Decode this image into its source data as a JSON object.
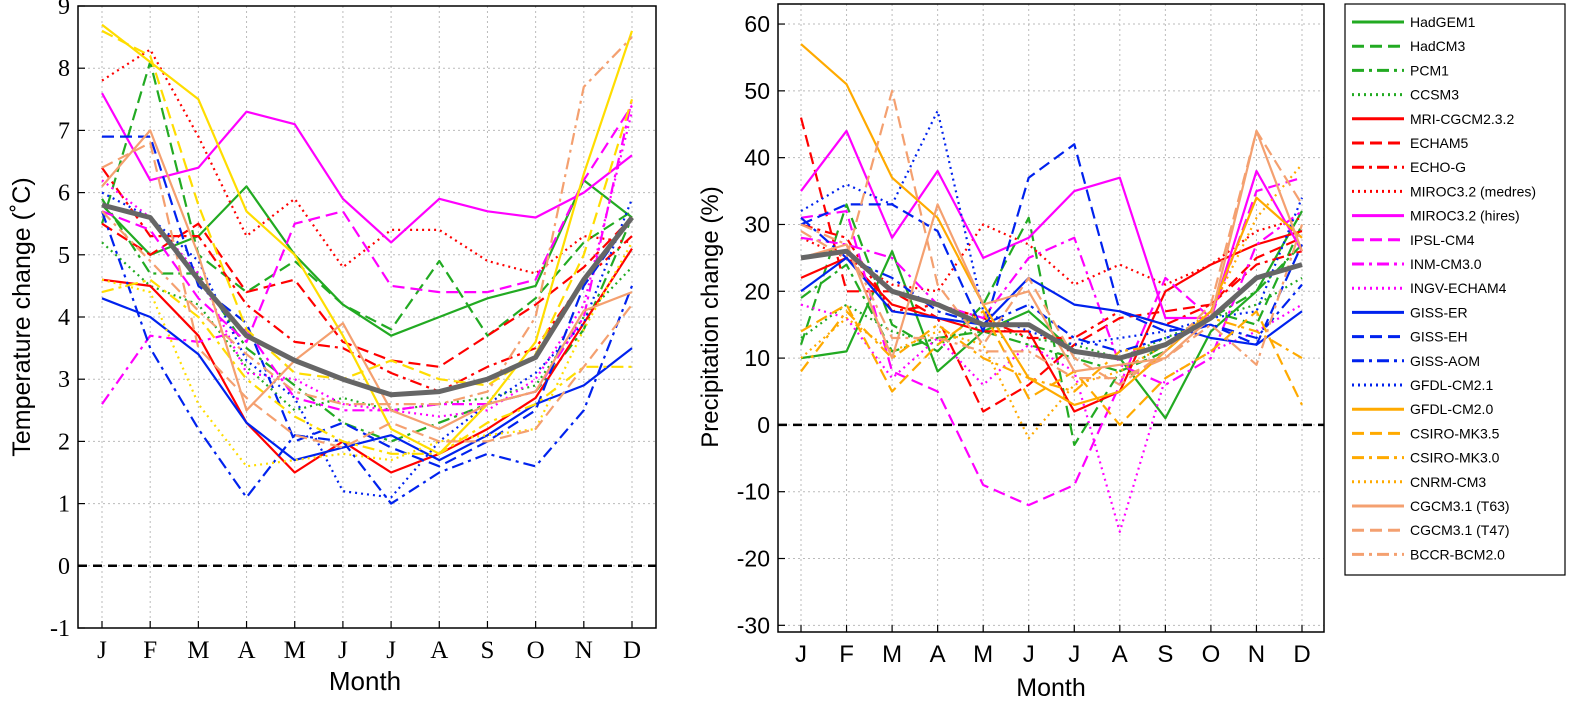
{
  "months": [
    "J",
    "F",
    "M",
    "A",
    "M",
    "J",
    "J",
    "A",
    "S",
    "O",
    "N",
    "D"
  ],
  "legend_entries": [
    {
      "name": "HadGEM1",
      "color": "#22aa22",
      "dash": "solid"
    },
    {
      "name": "HadCM3",
      "color": "#22aa22",
      "dash": "dash"
    },
    {
      "name": "PCM1",
      "color": "#22aa22",
      "dashdot": true,
      "dash": "dashdot"
    },
    {
      "name": "CCSM3",
      "color": "#22aa22",
      "dash": "dot"
    },
    {
      "name": "MRI-CGCM2.3.2",
      "color": "#ff0000",
      "dash": "solid"
    },
    {
      "name": "ECHAM5",
      "color": "#ff0000",
      "dash": "dash"
    },
    {
      "name": "ECHO-G",
      "color": "#ff0000",
      "dash": "dashdot"
    },
    {
      "name": "MIROC3.2 (medres)",
      "color": "#ff0000",
      "dash": "dot"
    },
    {
      "name": "MIROC3.2 (hires)",
      "color": "#ff00ff",
      "dash": "solid"
    },
    {
      "name": "IPSL-CM4",
      "color": "#ff00ff",
      "dash": "dash"
    },
    {
      "name": "INM-CM3.0",
      "color": "#ff00ff",
      "dash": "dashdot"
    },
    {
      "name": "INGV-ECHAM4",
      "color": "#ff00ff",
      "dash": "dot"
    },
    {
      "name": "GISS-ER",
      "color": "#0022ee",
      "dash": "solid"
    },
    {
      "name": "GISS-EH",
      "color": "#0022ee",
      "dash": "dash"
    },
    {
      "name": "GISS-AOM",
      "color": "#0022ee",
      "dash": "dashdot"
    },
    {
      "name": "GFDL-CM2.1",
      "color": "#0022ee",
      "dash": "dot"
    },
    {
      "name": "GFDL-CM2.0",
      "color": "#ffaa00",
      "dash": "solid"
    },
    {
      "name": "CSIRO-MK3.5",
      "color": "#ffaa00",
      "dash": "dash"
    },
    {
      "name": "CSIRO-MK3.0",
      "color": "#ffaa00",
      "dash": "dashdot"
    },
    {
      "name": "CNRM-CM3",
      "color": "#ffaa00",
      "dash": "dot"
    },
    {
      "name": "CGCM3.1 (T63)",
      "color": "#f4a070",
      "dash": "solid"
    },
    {
      "name": "CGCM3.1 (T47)",
      "color": "#f4a070",
      "dash": "dash"
    },
    {
      "name": "BCCR-BCM2.0",
      "color": "#f4a070",
      "dash": "dashdot"
    }
  ],
  "chart_data": [
    {
      "type": "line",
      "xlabel": "Month",
      "ylabel": "Temperature change (˚C)",
      "ylim": [
        -1,
        9
      ],
      "yticks": [
        "-1",
        "0",
        "1",
        "2",
        "3",
        "4",
        "5",
        "6",
        "7",
        "8",
        "9"
      ],
      "grid": true,
      "reference_line": 0,
      "series": [
        {
          "name": "HadGEM1",
          "color": "#22aa22",
          "dash": "solid",
          "values": [
            5.8,
            5.0,
            5.3,
            6.1,
            5.0,
            4.2,
            3.7,
            4.0,
            4.3,
            4.5,
            6.2,
            5.6
          ]
        },
        {
          "name": "HadCM3",
          "color": "#22aa22",
          "dash": "dash",
          "values": [
            5.5,
            8.1,
            5.0,
            4.4,
            4.9,
            4.2,
            3.8,
            4.9,
            3.7,
            4.3,
            5.2,
            5.7
          ]
        },
        {
          "name": "PCM1",
          "color": "#22aa22",
          "dash": "dashdot",
          "values": [
            5.9,
            4.7,
            4.7,
            3.5,
            2.9,
            2.3,
            2.0,
            2.3,
            2.6,
            2.8,
            3.8,
            5.6
          ]
        },
        {
          "name": "CCSM3",
          "color": "#22aa22",
          "dash": "dot",
          "values": [
            5.2,
            4.5,
            4.2,
            3.2,
            2.5,
            2.7,
            2.5,
            2.6,
            2.7,
            2.9,
            4.0,
            4.8
          ]
        },
        {
          "name": "MRI-CGCM2.3.2",
          "color": "#ff0000",
          "dash": "solid",
          "values": [
            4.6,
            4.5,
            3.7,
            2.3,
            1.5,
            2.0,
            1.5,
            1.8,
            2.2,
            2.7,
            3.9,
            5.1
          ]
        },
        {
          "name": "ECHAM5",
          "color": "#ff0000",
          "dash": "dash",
          "values": [
            5.5,
            5.0,
            5.5,
            4.4,
            4.6,
            3.6,
            3.3,
            3.2,
            3.7,
            4.2,
            4.8,
            5.6
          ]
        },
        {
          "name": "ECHO-G",
          "color": "#ff0000",
          "dash": "dashdot",
          "values": [
            6.4,
            5.3,
            5.3,
            4.2,
            3.6,
            3.5,
            3.1,
            2.8,
            3.2,
            3.5,
            4.6,
            5.3
          ]
        },
        {
          "name": "MIROC3.2 (medres)",
          "color": "#ff0000",
          "dash": "dot",
          "values": [
            7.8,
            8.3,
            6.9,
            5.3,
            5.9,
            4.8,
            5.4,
            5.4,
            4.9,
            4.7,
            5.3,
            5.2
          ]
        },
        {
          "name": "MIROC3.2 (hires)",
          "color": "#ff00ff",
          "dash": "solid",
          "values": [
            7.6,
            6.2,
            6.4,
            7.3,
            7.1,
            5.9,
            5.2,
            5.9,
            5.7,
            5.6,
            6.0,
            6.6
          ]
        },
        {
          "name": "IPSL-CM4",
          "color": "#ff00ff",
          "dash": "dash",
          "values": [
            5.7,
            5.4,
            4.3,
            3.6,
            5.5,
            5.7,
            4.5,
            4.4,
            4.4,
            4.6,
            6.2,
            7.4
          ]
        },
        {
          "name": "INM-CM3.0",
          "color": "#ff00ff",
          "dash": "dashdot",
          "values": [
            2.6,
            3.7,
            3.6,
            3.8,
            2.7,
            2.5,
            2.5,
            2.6,
            2.6,
            2.8,
            4.0,
            7.5
          ]
        },
        {
          "name": "INGV-ECHAM4",
          "color": "#ff00ff",
          "dash": "dot",
          "values": [
            6.2,
            5.6,
            4.7,
            3.1,
            3.0,
            2.6,
            2.5,
            2.4,
            2.5,
            3.0,
            4.2,
            7.3
          ]
        },
        {
          "name": "GISS-ER",
          "color": "#0022ee",
          "dash": "solid",
          "values": [
            4.3,
            4.0,
            3.4,
            2.3,
            1.7,
            1.9,
            2.1,
            1.7,
            2.1,
            2.6,
            2.9,
            3.5
          ]
        },
        {
          "name": "GISS-EH",
          "color": "#0022ee",
          "dash": "dash",
          "values": [
            6.9,
            6.9,
            4.5,
            3.9,
            2.0,
            2.3,
            1.9,
            1.6,
            2.0,
            2.5,
            4.5,
            5.6
          ]
        },
        {
          "name": "GISS-AOM",
          "color": "#0022ee",
          "dash": "dashdot",
          "values": [
            5.7,
            3.5,
            2.2,
            1.1,
            2.1,
            2.0,
            1.0,
            1.5,
            1.8,
            1.6,
            2.5,
            4.5
          ]
        },
        {
          "name": "GFDL-CM2.1",
          "color": "#0022ee",
          "dash": "dot",
          "values": [
            6.0,
            5.6,
            4.9,
            3.3,
            2.7,
            1.2,
            1.1,
            2.0,
            2.6,
            3.1,
            3.9,
            5.9
          ]
        },
        {
          "name": "GFDL-CM2.0",
          "color": "#ffdd00",
          "dash": "solid",
          "values": [
            8.7,
            8.1,
            7.5,
            5.7,
            5.0,
            3.7,
            2.2,
            1.8,
            2.6,
            3.6,
            6.3,
            8.6
          ]
        },
        {
          "name": "CSIRO-MK3.5",
          "color": "#ffdd00",
          "dash": "dash",
          "values": [
            8.6,
            8.2,
            5.8,
            3.8,
            3.1,
            3.0,
            3.3,
            3.0,
            2.9,
            3.4,
            5.0,
            7.5
          ]
        },
        {
          "name": "CSIRO-MK3.0",
          "color": "#ffdd00",
          "dash": "dashdot",
          "values": [
            4.4,
            4.6,
            4.0,
            3.0,
            2.4,
            2.0,
            1.8,
            1.8,
            2.3,
            2.6,
            3.2,
            3.2
          ]
        },
        {
          "name": "CNRM-CM3",
          "color": "#ffdd00",
          "dash": "dot",
          "values": [
            4.6,
            4.4,
            2.6,
            1.6,
            1.7,
            1.8,
            1.7,
            2.0,
            2.1,
            2.2,
            3.8,
            5.2
          ]
        },
        {
          "name": "CGCM3.1 (T63)",
          "color": "#f4a070",
          "dash": "solid",
          "values": [
            6.1,
            7.0,
            5.0,
            2.5,
            3.3,
            3.9,
            2.5,
            2.2,
            2.6,
            2.8,
            4.1,
            4.4
          ]
        },
        {
          "name": "CGCM3.1 (T47)",
          "color": "#f4a070",
          "dash": "dash",
          "values": [
            6.4,
            6.8,
            3.5,
            2.7,
            2.1,
            1.9,
            2.3,
            2.0,
            2.0,
            2.2,
            3.2,
            4.2
          ]
        },
        {
          "name": "BCCR-BCM2.0",
          "color": "#f4a070",
          "dash": "dashdot",
          "values": [
            5.7,
            4.9,
            4.1,
            3.4,
            2.8,
            2.6,
            2.6,
            2.6,
            2.8,
            4.0,
            7.7,
            8.5
          ]
        },
        {
          "name": "",
          "color": "#666666",
          "dash": "solid",
          "width": 5,
          "values": [
            5.8,
            5.6,
            4.6,
            3.7,
            3.3,
            3.0,
            2.75,
            2.8,
            3.0,
            3.35,
            4.6,
            5.6
          ]
        }
      ]
    },
    {
      "type": "line",
      "xlabel": "Month",
      "ylabel": "Precipitation change (%)",
      "ylim": [
        -31,
        63
      ],
      "yticks": [
        "-30",
        "-20",
        "-10",
        "0",
        "10",
        "20",
        "30",
        "40",
        "50",
        "60"
      ],
      "grid": true,
      "reference_line": 0,
      "series": [
        {
          "name": "HadGEM1",
          "color": "#22aa22",
          "dash": "solid",
          "values": [
            10,
            11,
            26,
            8,
            14,
            17,
            11,
            10,
            1,
            14,
            20,
            32
          ]
        },
        {
          "name": "HadCM3",
          "color": "#22aa22",
          "dash": "dash",
          "values": [
            12,
            33,
            15,
            11,
            18,
            31,
            -3,
            8,
            11,
            17,
            15,
            30
          ]
        },
        {
          "name": "PCM1",
          "color": "#22aa22",
          "dash": "dashdot",
          "values": [
            19,
            24,
            11,
            13,
            14,
            12,
            10,
            8,
            12,
            16,
            20,
            27
          ]
        },
        {
          "name": "CCSM3",
          "color": "#22aa22",
          "dash": "dot",
          "values": [
            13,
            18,
            14,
            12,
            15,
            13,
            12,
            10,
            13,
            16,
            18,
            22
          ]
        },
        {
          "name": "MRI-CGCM2.3.2",
          "color": "#ff0000",
          "dash": "solid",
          "values": [
            22,
            25,
            18,
            16,
            14,
            14,
            2,
            5,
            20,
            24,
            27,
            29
          ]
        },
        {
          "name": "ECHAM5",
          "color": "#ff0000",
          "dash": "dash",
          "values": [
            46,
            20,
            20,
            16,
            2,
            6,
            12,
            16,
            17,
            18,
            25,
            28
          ]
        },
        {
          "name": "ECHO-G",
          "color": "#ff0000",
          "dash": "dashdot",
          "values": [
            30,
            28,
            17,
            18,
            16,
            13,
            13,
            17,
            15,
            18,
            24,
            26
          ]
        },
        {
          "name": "MIROC3.2 (medres)",
          "color": "#ff0000",
          "dash": "dot",
          "values": [
            28,
            25,
            21,
            20,
            30,
            27,
            21,
            24,
            21,
            24,
            29,
            31
          ]
        },
        {
          "name": "MIROC3.2 (hires)",
          "color": "#ff00ff",
          "dash": "solid",
          "values": [
            35,
            44,
            28,
            38,
            25,
            28,
            35,
            37,
            16,
            16,
            38,
            26
          ]
        },
        {
          "name": "IPSL-CM4",
          "color": "#ff00ff",
          "dash": "dash",
          "values": [
            31,
            32,
            8,
            5,
            -9,
            -12,
            -9,
            6,
            22,
            16,
            35,
            37
          ]
        },
        {
          "name": "INM-CM3.0",
          "color": "#ff00ff",
          "dash": "dashdot",
          "values": [
            28,
            27,
            25,
            18,
            16,
            25,
            28,
            9,
            6,
            10,
            27,
            32
          ]
        },
        {
          "name": "INGV-ECHAM4",
          "color": "#ff00ff",
          "dash": "dot",
          "values": [
            18,
            16,
            7,
            13,
            6,
            12,
            8,
            -16,
            7,
            11,
            14,
            18
          ]
        },
        {
          "name": "GISS-ER",
          "color": "#0022ee",
          "dash": "solid",
          "values": [
            20,
            25,
            17,
            16,
            15,
            22,
            18,
            17,
            15,
            13,
            12,
            17
          ]
        },
        {
          "name": "GISS-EH",
          "color": "#0022ee",
          "dash": "dash",
          "values": [
            30,
            33,
            33,
            29,
            14,
            37,
            42,
            17,
            14,
            15,
            12,
            27
          ]
        },
        {
          "name": "GISS-AOM",
          "color": "#0022ee",
          "dash": "dashdot",
          "values": [
            31,
            25,
            22,
            17,
            15,
            18,
            13,
            11,
            13,
            15,
            13,
            21
          ]
        },
        {
          "name": "GFDL-CM2.1",
          "color": "#0022ee",
          "dash": "dot",
          "values": [
            32,
            36,
            33,
            47,
            17,
            14,
            12,
            13,
            14,
            16,
            17,
            34
          ]
        },
        {
          "name": "GFDL-CM2.0",
          "color": "#ffaa00",
          "dash": "solid",
          "values": [
            57,
            51,
            37,
            31,
            18,
            7,
            3,
            5,
            11,
            17,
            34,
            28
          ]
        },
        {
          "name": "CSIRO-MK3.5",
          "color": "#ffaa00",
          "dash": "dash",
          "values": [
            14,
            18,
            5,
            12,
            17,
            4,
            8,
            0,
            7,
            11,
            17,
            3
          ]
        },
        {
          "name": "CSIRO-MK3.0",
          "color": "#ffaa00",
          "dash": "dashdot",
          "values": [
            8,
            17,
            10,
            15,
            10,
            7,
            5,
            11,
            12,
            16,
            14,
            10
          ]
        },
        {
          "name": "CNRM-CM3",
          "color": "#ffaa00",
          "dash": "dot",
          "values": [
            10,
            16,
            11,
            14,
            12,
            -2,
            6,
            8,
            12,
            17,
            31,
            39
          ]
        },
        {
          "name": "CGCM3.1 (T63)",
          "color": "#f4a070",
          "dash": "solid",
          "values": [
            25,
            27,
            10,
            33,
            18,
            20,
            8,
            9,
            10,
            16,
            44,
            26
          ]
        },
        {
          "name": "CGCM3.1 (T47)",
          "color": "#f4a070",
          "dash": "dash",
          "values": [
            29,
            25,
            50,
            21,
            12,
            22,
            10,
            6,
            11,
            18,
            44,
            33
          ]
        },
        {
          "name": "BCCR-BCM2.0",
          "color": "#f4a070",
          "dash": "dashdot",
          "values": [
            30,
            27,
            13,
            13,
            11,
            11,
            7,
            7,
            10,
            15,
            9,
            30
          ]
        },
        {
          "name": "",
          "color": "#666666",
          "dash": "solid",
          "width": 5,
          "values": [
            25,
            26,
            20,
            18,
            15,
            15,
            11,
            10,
            12,
            16,
            22,
            24
          ]
        }
      ]
    }
  ]
}
